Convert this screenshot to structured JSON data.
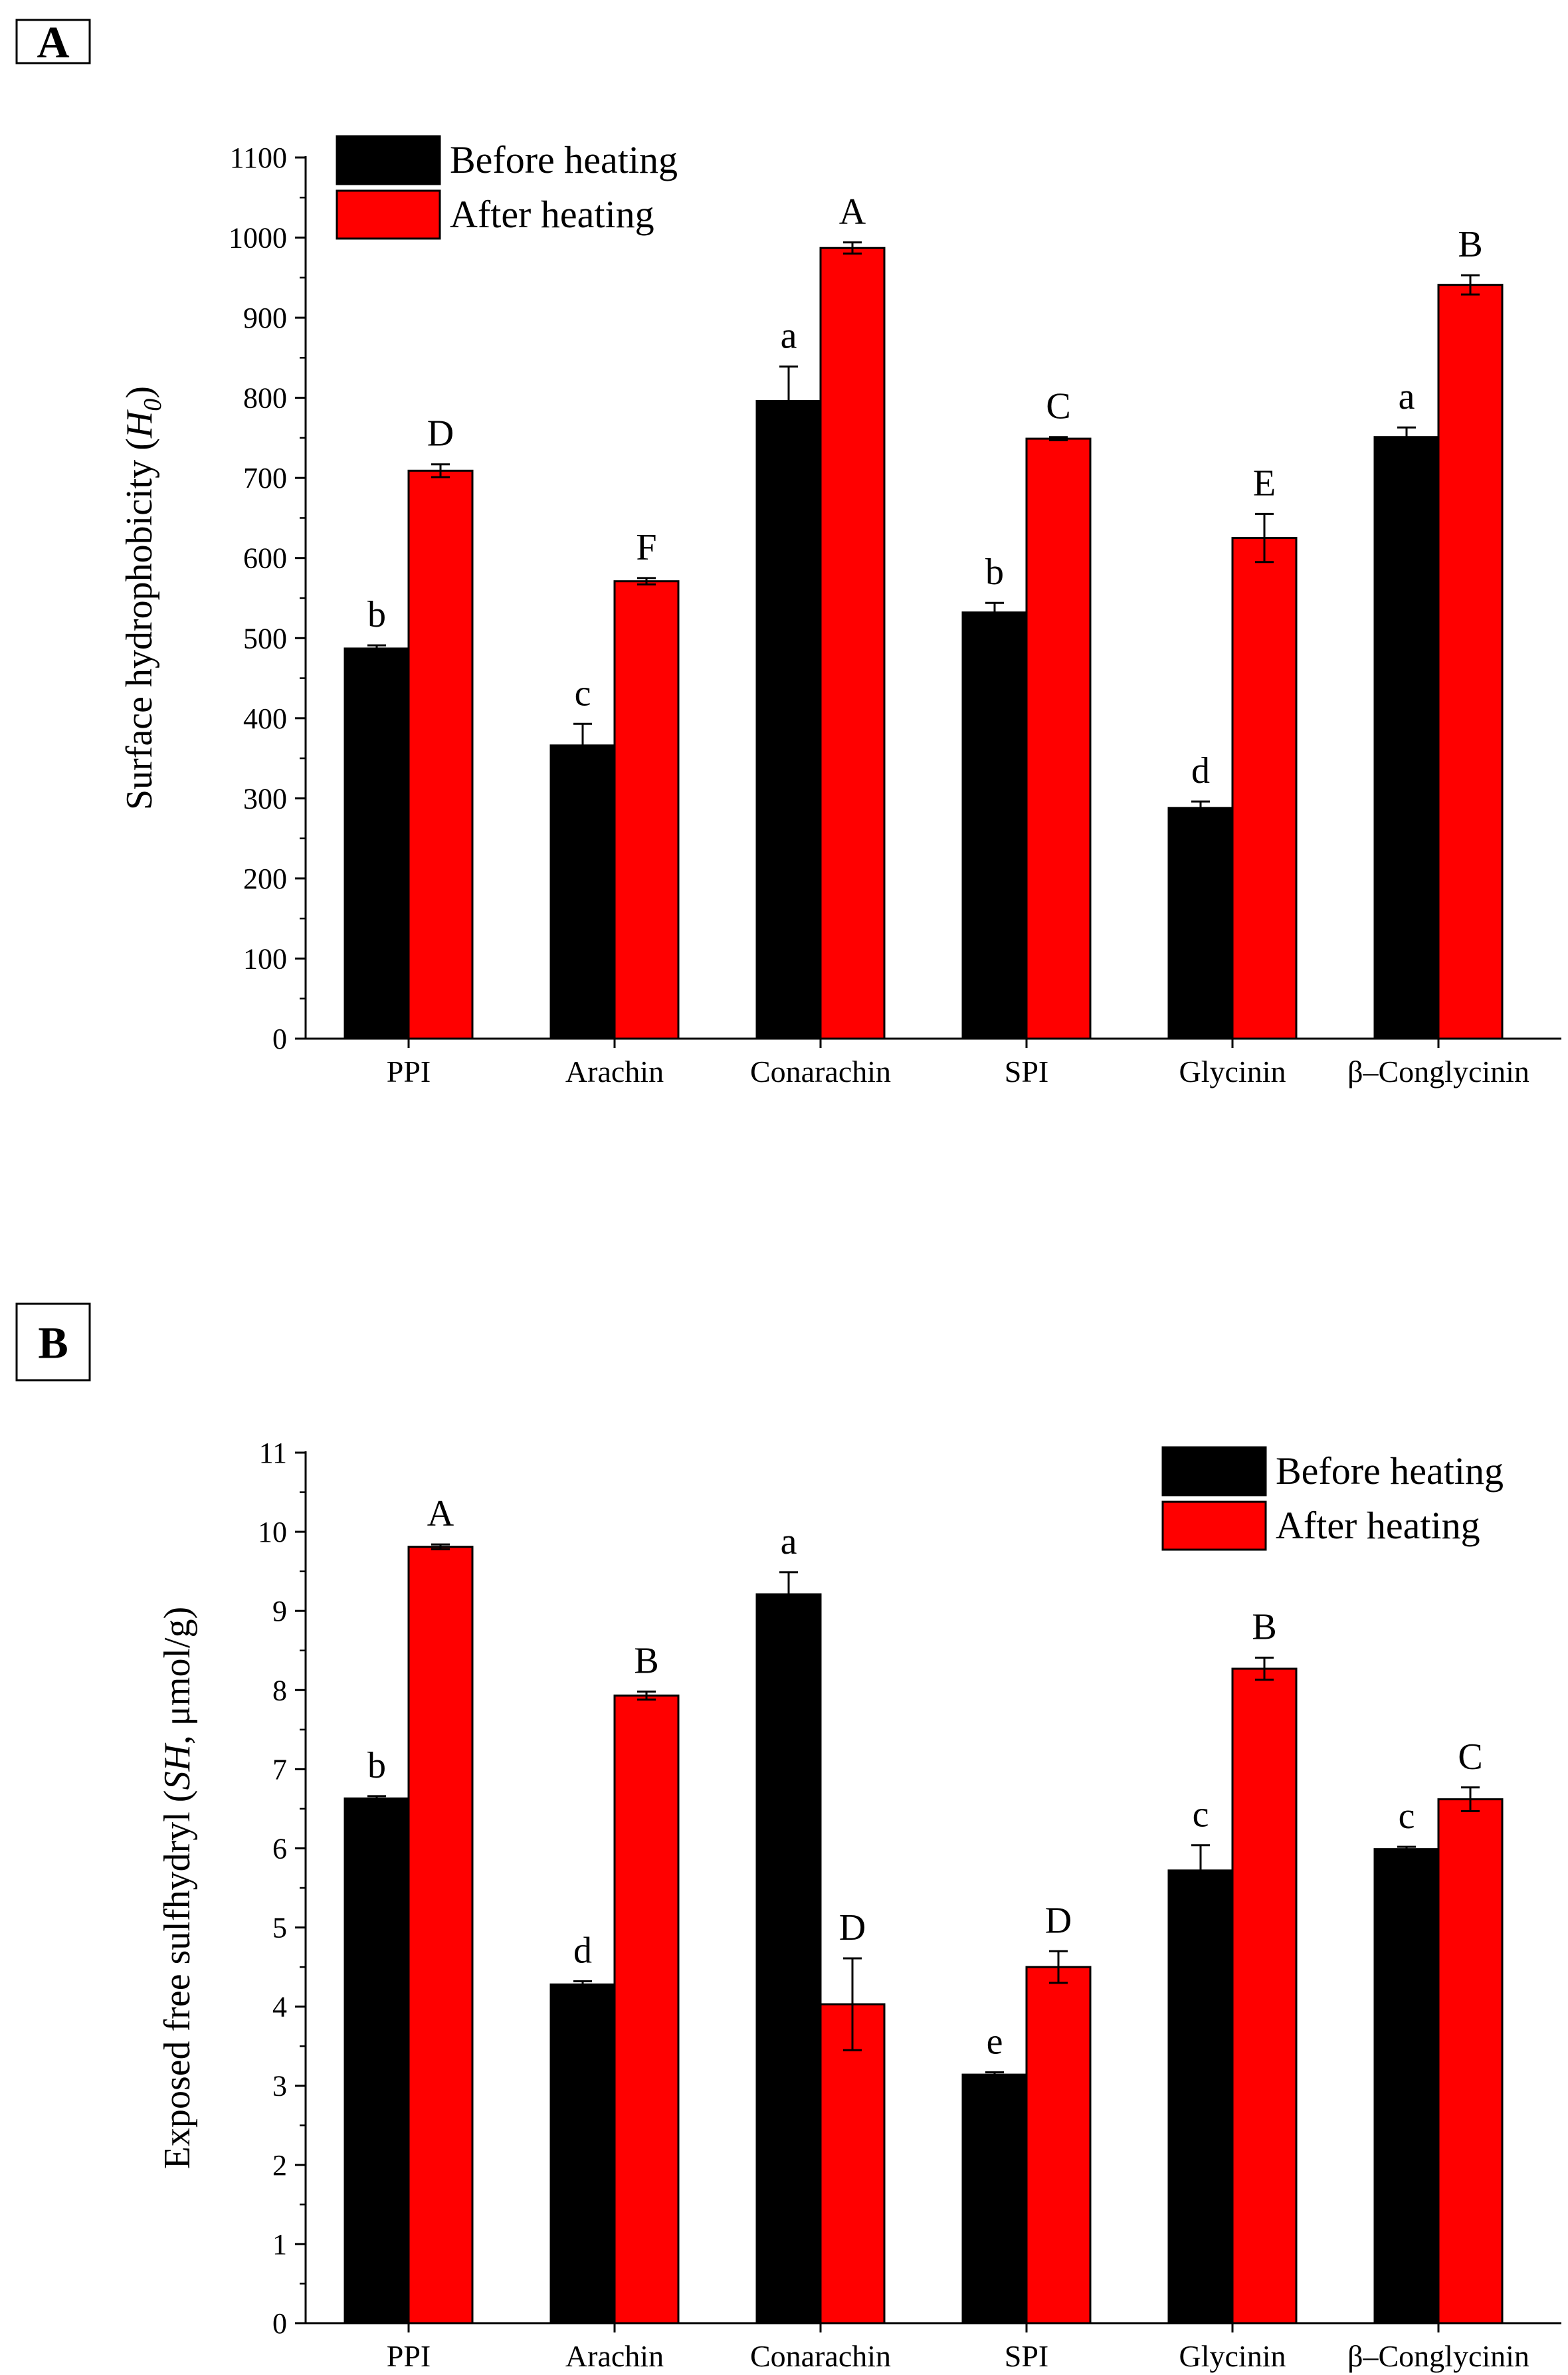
{
  "colors": {
    "before": "#000000",
    "after": "#ff0000",
    "axis": "#000000"
  },
  "chart_data": [
    {
      "panel": "A",
      "type": "bar",
      "title": "",
      "xlabel": "",
      "ylabel": "Surface hydrophobicity",
      "ylabel_sym": "H",
      "ylabel_sub": "0",
      "ylim": [
        0,
        1100
      ],
      "yticks": [
        0,
        100,
        200,
        300,
        400,
        500,
        600,
        700,
        800,
        900,
        1000,
        1100
      ],
      "categories": [
        "PPI",
        "Arachin",
        "Conarachin",
        "SPI",
        "Glycinin",
        "β–Conglycinin"
      ],
      "legend_position": "top-left",
      "series": [
        {
          "name": "Before heating",
          "color_key": "before",
          "values": [
            487,
            366,
            796,
            532,
            288,
            751
          ],
          "errors": [
            4,
            27,
            43,
            12,
            8,
            12
          ],
          "letters": [
            "b",
            "c",
            "a",
            "b",
            "d",
            "a"
          ]
        },
        {
          "name": "After heating",
          "color_key": "after",
          "values": [
            709,
            571,
            987,
            749,
            625,
            941
          ],
          "errors": [
            8,
            4,
            7,
            2,
            30,
            12
          ],
          "letters": [
            "D",
            "F",
            "A",
            "C",
            "E",
            "B"
          ]
        }
      ]
    },
    {
      "panel": "B",
      "type": "bar",
      "title": "",
      "xlabel": "",
      "ylabel": "Exposed free sulfhydryl",
      "ylabel_sym": "SH",
      "ylabel_unit": "μmol/g",
      "ylim": [
        0,
        11
      ],
      "yticks": [
        0,
        1,
        2,
        3,
        4,
        5,
        6,
        7,
        8,
        9,
        10,
        11
      ],
      "categories": [
        "PPI",
        "Arachin",
        "Conarachin",
        "SPI",
        "Glycinin",
        "β–Conglycinin"
      ],
      "legend_position": "top-right",
      "series": [
        {
          "name": "Before heating",
          "color_key": "before",
          "values": [
            6.63,
            4.28,
            9.21,
            3.14,
            5.72,
            5.99
          ],
          "errors": [
            0.03,
            0.04,
            0.28,
            0.03,
            0.32,
            0.03
          ],
          "letters": [
            "b",
            "d",
            "a",
            "e",
            "c",
            "c"
          ]
        },
        {
          "name": "After heating",
          "color_key": "after",
          "values": [
            9.81,
            7.93,
            4.03,
            4.5,
            8.27,
            6.62
          ],
          "errors": [
            0.03,
            0.05,
            0.58,
            0.2,
            0.14,
            0.15
          ],
          "letters": [
            "A",
            "B",
            "D",
            "D",
            "B",
            "C"
          ]
        }
      ]
    }
  ]
}
